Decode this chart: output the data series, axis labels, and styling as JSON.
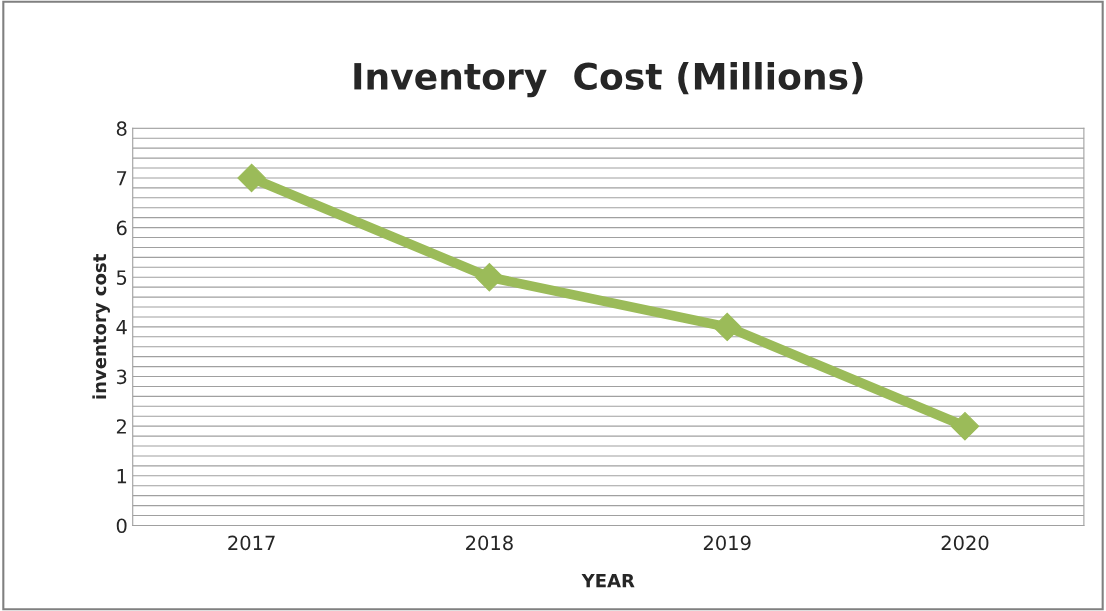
{
  "chart_data": {
    "type": "line",
    "title": "Inventory  Cost (Millions)",
    "xlabel": "YEAR",
    "ylabel": "inventory cost",
    "categories": [
      "2017",
      "2018",
      "2019",
      "2020"
    ],
    "series": [
      {
        "color": "#9bbb59",
        "values": [
          7,
          5,
          4,
          2
        ]
      }
    ],
    "ylim": [
      0,
      8
    ],
    "yticks": [
      0,
      {
        "value": 0.2,
        "label": null
      },
      {
        "value": 0.4,
        "label": null
      },
      {
        "value": 0.6,
        "label": null
      },
      {
        "value": 0.8,
        "label": null
      },
      1,
      {
        "value": 1.2,
        "label": null
      },
      {
        "value": 1.4,
        "label": null
      },
      {
        "value": 1.6,
        "label": null
      },
      {
        "value": 1.8,
        "label": null
      },
      2,
      {
        "value": 2.2,
        "label": null
      },
      {
        "value": 2.4,
        "label": null
      },
      {
        "value": 2.6,
        "label": null
      },
      {
        "value": 2.8,
        "label": null
      },
      3,
      {
        "value": 3.2,
        "label": null
      },
      {
        "value": 3.4,
        "label": null
      },
      {
        "value": 3.6,
        "label": null
      },
      {
        "value": 3.8,
        "label": null
      },
      4,
      {
        "value": 4.2,
        "label": null
      },
      {
        "value": 4.4,
        "label": null
      },
      {
        "value": 4.6,
        "label": null
      },
      {
        "value": 4.8,
        "label": null
      },
      5,
      {
        "value": 5.2,
        "label": null
      },
      {
        "value": 5.4,
        "label": null
      },
      {
        "value": 5.6,
        "label": null
      },
      {
        "value": 5.8,
        "label": null
      },
      6,
      {
        "value": 6.2,
        "label": null
      },
      {
        "value": 6.4,
        "label": null
      },
      {
        "value": 6.6,
        "label": null
      },
      {
        "value": 6.8,
        "label": null
      },
      7,
      {
        "value": 7.2,
        "label": null
      },
      {
        "value": 7.4,
        "label": null
      },
      {
        "value": 7.6,
        "label": null
      },
      {
        "value": 7.8,
        "label": null
      },
      8
    ],
    "grid": "y",
    "marker": "diamond",
    "line_style": "solid"
  }
}
